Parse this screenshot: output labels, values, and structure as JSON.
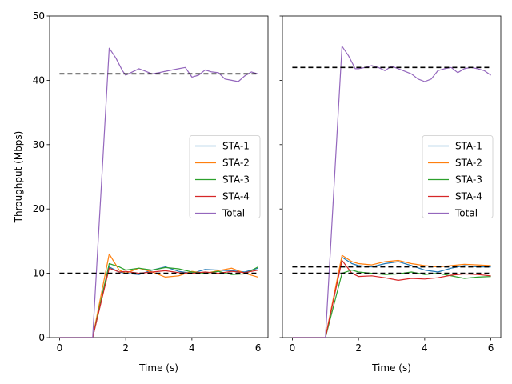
{
  "chart_data": [
    {
      "type": "line",
      "panel": "left",
      "xlabel": "Time (s)",
      "ylabel": "Throughput (Mbps)",
      "xlim": [
        -0.3,
        6.3
      ],
      "ylim": [
        0,
        50
      ],
      "xticks": [
        "0",
        "2",
        "4",
        "6"
      ],
      "yticks": [
        "0",
        "10",
        "20",
        "30",
        "40",
        "50"
      ],
      "legend_position": "center-right",
      "series": [
        {
          "name": "STA-1",
          "color": "#1f77b4",
          "x": [
            0,
            1.0,
            1.5,
            1.8,
            2.0,
            2.4,
            2.8,
            3.2,
            3.6,
            4.0,
            4.4,
            4.8,
            5.2,
            5.6,
            6.0
          ],
          "y": [
            0,
            0,
            11.0,
            10.2,
            10.0,
            9.8,
            10.5,
            11.0,
            10.3,
            10.0,
            10.6,
            10.5,
            10.4,
            10.2,
            10.8
          ]
        },
        {
          "name": "STA-2",
          "color": "#ff7f0e",
          "x": [
            0,
            1.0,
            1.5,
            1.8,
            2.0,
            2.4,
            2.8,
            3.2,
            3.6,
            4.0,
            4.4,
            4.8,
            5.2,
            5.6,
            6.0
          ],
          "y": [
            0,
            0,
            13.0,
            10.5,
            10.0,
            10.8,
            10.2,
            9.4,
            9.6,
            10.3,
            10.0,
            10.4,
            10.8,
            10.0,
            9.4
          ]
        },
        {
          "name": "STA-3",
          "color": "#2ca02c",
          "x": [
            0,
            1.0,
            1.5,
            1.8,
            2.0,
            2.4,
            2.8,
            3.2,
            3.6,
            4.0,
            4.4,
            4.8,
            5.2,
            5.6,
            6.0
          ],
          "y": [
            0,
            0,
            11.5,
            11.0,
            10.5,
            10.8,
            10.5,
            10.9,
            10.7,
            10.2,
            10.0,
            10.3,
            9.8,
            9.9,
            11.0
          ]
        },
        {
          "name": "STA-4",
          "color": "#d62728",
          "x": [
            0,
            1.0,
            1.5,
            1.8,
            2.0,
            2.4,
            2.8,
            3.2,
            3.6,
            4.0,
            4.4,
            4.8,
            5.2,
            5.6,
            6.0
          ],
          "y": [
            0,
            0,
            10.8,
            10.2,
            10.3,
            10.0,
            10.2,
            10.4,
            10.1,
            10.0,
            10.2,
            10.0,
            10.3,
            10.1,
            10.5
          ]
        },
        {
          "name": "Total",
          "color": "#9467bd",
          "x": [
            0,
            1.0,
            1.5,
            1.7,
            1.9,
            2.0,
            2.2,
            2.4,
            2.6,
            2.8,
            3.0,
            3.2,
            3.4,
            3.6,
            3.8,
            4.0,
            4.2,
            4.4,
            4.6,
            4.8,
            5.0,
            5.2,
            5.4,
            5.6,
            5.8,
            6.0
          ],
          "y": [
            0,
            0,
            45.0,
            43.5,
            41.5,
            40.8,
            41.3,
            41.8,
            41.4,
            41.0,
            41.2,
            41.4,
            41.6,
            41.8,
            42.0,
            40.5,
            40.8,
            41.6,
            41.3,
            41.2,
            40.2,
            40.0,
            39.8,
            40.7,
            41.3,
            41.0
          ]
        }
      ],
      "reference_lines": [
        41,
        10
      ]
    },
    {
      "type": "line",
      "panel": "right",
      "xlabel": "Time (s)",
      "xlim": [
        -0.3,
        6.3
      ],
      "ylim": [
        0,
        50
      ],
      "xticks": [
        "0",
        "2",
        "4",
        "6"
      ],
      "legend_position": "center-right",
      "series": [
        {
          "name": "STA-1",
          "color": "#1f77b4",
          "x": [
            0,
            1.0,
            1.5,
            1.8,
            2.0,
            2.4,
            2.8,
            3.2,
            3.6,
            4.0,
            4.4,
            4.8,
            5.2,
            5.6,
            6.0
          ],
          "y": [
            0,
            0,
            12.5,
            11.5,
            11.2,
            11.0,
            11.5,
            11.8,
            11.2,
            10.5,
            10.2,
            10.8,
            11.2,
            11.0,
            11.0
          ]
        },
        {
          "name": "STA-2",
          "color": "#ff7f0e",
          "x": [
            0,
            1.0,
            1.5,
            1.8,
            2.0,
            2.4,
            2.8,
            3.2,
            3.6,
            4.0,
            4.4,
            4.8,
            5.2,
            5.6,
            6.0
          ],
          "y": [
            0,
            0,
            12.8,
            11.8,
            11.5,
            11.3,
            11.8,
            12.0,
            11.5,
            11.2,
            11.0,
            11.2,
            11.4,
            11.3,
            11.2
          ]
        },
        {
          "name": "STA-3",
          "color": "#2ca02c",
          "x": [
            0,
            1.0,
            1.5,
            1.8,
            2.0,
            2.4,
            2.8,
            3.2,
            3.6,
            4.0,
            4.4,
            4.8,
            5.2,
            5.6,
            6.0
          ],
          "y": [
            0,
            0,
            10.0,
            10.5,
            10.2,
            10.0,
            9.8,
            9.9,
            10.2,
            9.8,
            10.0,
            9.6,
            9.2,
            9.4,
            9.5
          ]
        },
        {
          "name": "STA-4",
          "color": "#d62728",
          "x": [
            0,
            1.0,
            1.5,
            1.8,
            2.0,
            2.4,
            2.8,
            3.2,
            3.6,
            4.0,
            4.4,
            4.8,
            5.2,
            5.6,
            6.0
          ],
          "y": [
            0,
            0,
            12.0,
            10.0,
            9.5,
            9.6,
            9.3,
            8.9,
            9.2,
            9.1,
            9.3,
            9.7,
            9.9,
            9.8,
            9.6
          ]
        },
        {
          "name": "Total",
          "color": "#9467bd",
          "x": [
            0,
            1.0,
            1.5,
            1.7,
            1.9,
            2.0,
            2.2,
            2.4,
            2.6,
            2.8,
            3.0,
            3.2,
            3.4,
            3.6,
            3.8,
            4.0,
            4.2,
            4.4,
            4.6,
            4.8,
            5.0,
            5.2,
            5.4,
            5.6,
            5.8,
            6.0
          ],
          "y": [
            0,
            0,
            45.3,
            43.8,
            41.8,
            41.8,
            42.0,
            42.3,
            42.0,
            41.5,
            42.2,
            41.8,
            41.4,
            41.0,
            40.2,
            39.8,
            40.2,
            41.5,
            41.8,
            42.0,
            41.2,
            41.8,
            42.0,
            41.8,
            41.5,
            40.8
          ]
        }
      ],
      "reference_lines": [
        42,
        11,
        10
      ]
    }
  ]
}
